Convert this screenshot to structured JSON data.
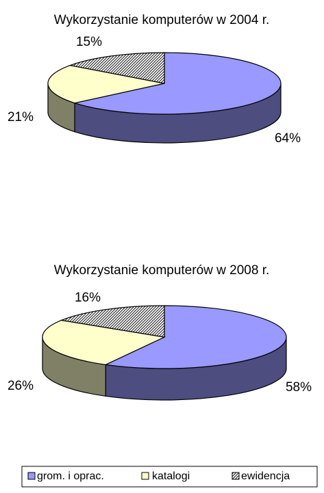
{
  "chart_data": [
    {
      "type": "pie",
      "title": "Wykorzystanie komputerów w 2004 r.",
      "values": [
        64,
        21,
        15
      ],
      "value_labels": [
        "64%",
        "21%",
        "15%"
      ]
    },
    {
      "type": "pie",
      "title": "Wykorzystanie komputerów w 2008 r.",
      "values": [
        58,
        26,
        16
      ],
      "value_labels": [
        "58%",
        "26%",
        "16%"
      ]
    }
  ],
  "legend": {
    "categories": [
      "grom. i oprac.",
      "katalogi",
      "ewidencja"
    ],
    "colors": [
      "#9999ff",
      "#ffffcc",
      "#808080"
    ],
    "patterns": [
      "solid",
      "solid",
      "hatched"
    ],
    "position": "bottom"
  }
}
